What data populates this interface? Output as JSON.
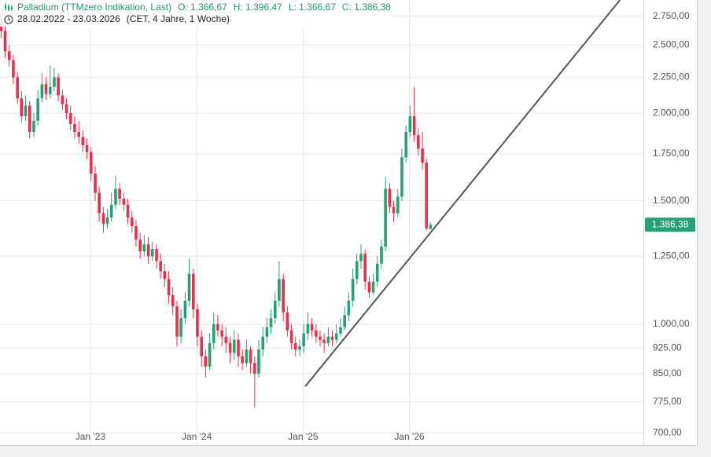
{
  "chart_data": {
    "type": "candlestick",
    "title": "Palladium (TTMzero Indikation, Last)",
    "ohlc_labels": [
      "O: 1.366,67",
      "H: 1.396,47",
      "L: 1.366,67",
      "C: 1.386,38"
    ],
    "subtitle": "28.02.2022 - 23.03.2026",
    "note": "(CET, 4 Jahre, 1 Woche)",
    "log_scale": true,
    "grid": true,
    "up_color": "#27a174",
    "down_color": "#e8304e",
    "xlim": [
      2022.15,
      2028.2
    ],
    "xticks": [
      {
        "value": 2023,
        "label": "Jan '23"
      },
      {
        "value": 2024,
        "label": "Jan '24"
      },
      {
        "value": 2025,
        "label": "Jan '25"
      },
      {
        "value": 2026,
        "label": "Jan '26"
      }
    ],
    "ylim": [
      672,
      2900
    ],
    "yticks": [
      {
        "value": 700,
        "label": "700,00"
      },
      {
        "value": 775,
        "label": "775,00"
      },
      {
        "value": 850,
        "label": "850,00"
      },
      {
        "value": 925,
        "label": "925,00"
      },
      {
        "value": 1000,
        "label": "1.000,00"
      },
      {
        "value": 1250,
        "label": "1.250,00"
      },
      {
        "value": 1500,
        "label": "1.500,00"
      },
      {
        "value": 1750,
        "label": "1.750,00"
      },
      {
        "value": 2000,
        "label": "2.000,00"
      },
      {
        "value": 2250,
        "label": "2.250,00"
      },
      {
        "value": 2500,
        "label": "2.500,00"
      },
      {
        "value": 2750,
        "label": "2.750,00"
      }
    ],
    "last_price": {
      "value": 1386.38,
      "label": "1.386,38"
    },
    "trendline": {
      "x": [
        2025.02,
        2027.98
      ],
      "y": [
        815,
        2900
      ],
      "color": "#555555"
    },
    "x": [
      2022.16,
      2022.198,
      2022.237,
      2022.275,
      2022.314,
      2022.352,
      2022.391,
      2022.429,
      2022.468,
      2022.506,
      2022.545,
      2022.583,
      2022.622,
      2022.66,
      2022.698,
      2022.737,
      2022.775,
      2022.814,
      2022.852,
      2022.891,
      2022.929,
      2022.968,
      2023.006,
      2023.045,
      2023.083,
      2023.122,
      2023.16,
      2023.198,
      2023.237,
      2023.275,
      2023.314,
      2023.352,
      2023.391,
      2023.429,
      2023.468,
      2023.506,
      2023.545,
      2023.583,
      2023.622,
      2023.66,
      2023.698,
      2023.737,
      2023.775,
      2023.814,
      2023.852,
      2023.891,
      2023.929,
      2023.968,
      2024.006,
      2024.045,
      2024.083,
      2024.122,
      2024.16,
      2024.198,
      2024.237,
      2024.275,
      2024.314,
      2024.352,
      2024.391,
      2024.429,
      2024.468,
      2024.506,
      2024.545,
      2024.583,
      2024.622,
      2024.66,
      2024.698,
      2024.737,
      2024.775,
      2024.814,
      2024.852,
      2024.891,
      2024.929,
      2024.968,
      2025.006,
      2025.045,
      2025.083,
      2025.122,
      2025.16,
      2025.198,
      2025.237,
      2025.275,
      2025.314,
      2025.352,
      2025.391,
      2025.429,
      2025.468,
      2025.506,
      2025.545,
      2025.583,
      2025.622,
      2025.66,
      2025.698,
      2025.737,
      2025.775,
      2025.814,
      2025.852,
      2025.891,
      2025.929,
      2025.968,
      2026.006,
      2026.045,
      2026.083,
      2026.122,
      2026.16,
      2026.198
    ],
    "ohlc": [
      [
        2700,
        2760,
        2560,
        2620
      ],
      [
        2620,
        2660,
        2400,
        2450
      ],
      [
        2450,
        2500,
        2330,
        2380
      ],
      [
        2380,
        2420,
        2200,
        2250
      ],
      [
        2250,
        2290,
        2060,
        2100
      ],
      [
        2100,
        2150,
        1940,
        1980
      ],
      [
        1980,
        2120,
        1950,
        2050
      ],
      [
        2050,
        2080,
        1840,
        1880
      ],
      [
        1880,
        2000,
        1850,
        1950
      ],
      [
        1950,
        2160,
        1920,
        2100
      ],
      [
        2100,
        2280,
        2070,
        2200
      ],
      [
        2200,
        2250,
        2090,
        2130
      ],
      [
        2130,
        2340,
        2100,
        2180
      ],
      [
        2180,
        2320,
        2150,
        2250
      ],
      [
        2250,
        2280,
        2080,
        2120
      ],
      [
        2120,
        2160,
        2020,
        2060
      ],
      [
        2060,
        2100,
        1960,
        2000
      ],
      [
        2000,
        2050,
        1890,
        1930
      ],
      [
        1930,
        1980,
        1840,
        1880
      ],
      [
        1880,
        1950,
        1810,
        1850
      ],
      [
        1850,
        1890,
        1760,
        1800
      ],
      [
        1800,
        1840,
        1720,
        1760
      ],
      [
        1760,
        1790,
        1600,
        1640
      ],
      [
        1640,
        1680,
        1500,
        1540
      ],
      [
        1540,
        1570,
        1400,
        1440
      ],
      [
        1440,
        1470,
        1350,
        1390
      ],
      [
        1390,
        1460,
        1370,
        1420
      ],
      [
        1420,
        1540,
        1400,
        1480
      ],
      [
        1480,
        1630,
        1460,
        1560
      ],
      [
        1560,
        1590,
        1480,
        1510
      ],
      [
        1510,
        1540,
        1450,
        1480
      ],
      [
        1480,
        1510,
        1390,
        1420
      ],
      [
        1420,
        1450,
        1350,
        1380
      ],
      [
        1380,
        1410,
        1290,
        1320
      ],
      [
        1320,
        1350,
        1240,
        1270
      ],
      [
        1270,
        1340,
        1250,
        1300
      ],
      [
        1300,
        1330,
        1220,
        1250
      ],
      [
        1250,
        1310,
        1230,
        1280
      ],
      [
        1280,
        1300,
        1200,
        1230
      ],
      [
        1230,
        1260,
        1160,
        1190
      ],
      [
        1190,
        1220,
        1130,
        1160
      ],
      [
        1160,
        1190,
        1070,
        1100
      ],
      [
        1100,
        1130,
        1030,
        1060
      ],
      [
        1060,
        1080,
        930,
        960
      ],
      [
        960,
        1050,
        940,
        1020
      ],
      [
        1020,
        1110,
        1000,
        1080
      ],
      [
        1080,
        1240,
        1060,
        1180
      ],
      [
        1180,
        1200,
        1020,
        1050
      ],
      [
        1050,
        1070,
        930,
        960
      ],
      [
        960,
        980,
        870,
        900
      ],
      [
        900,
        920,
        840,
        870
      ],
      [
        870,
        970,
        860,
        940
      ],
      [
        940,
        1040,
        920,
        1000
      ],
      [
        1000,
        1030,
        960,
        980
      ],
      [
        980,
        1000,
        930,
        960
      ],
      [
        960,
        990,
        910,
        940
      ],
      [
        940,
        960,
        880,
        910
      ],
      [
        910,
        980,
        890,
        950
      ],
      [
        950,
        970,
        870,
        900
      ],
      [
        900,
        920,
        860,
        880
      ],
      [
        880,
        950,
        870,
        920
      ],
      [
        920,
        930,
        850,
        880
      ],
      [
        880,
        900,
        760,
        850
      ],
      [
        850,
        950,
        840,
        920
      ],
      [
        920,
        990,
        900,
        960
      ],
      [
        960,
        1020,
        940,
        990
      ],
      [
        990,
        1050,
        970,
        1020
      ],
      [
        1020,
        1110,
        1000,
        1080
      ],
      [
        1080,
        1230,
        1060,
        1160
      ],
      [
        1160,
        1180,
        1010,
        1040
      ],
      [
        1040,
        1060,
        960,
        980
      ],
      [
        980,
        1000,
        920,
        940
      ],
      [
        940,
        960,
        900,
        920
      ],
      [
        920,
        950,
        900,
        930
      ],
      [
        930,
        1000,
        910,
        970
      ],
      [
        970,
        1040,
        950,
        1000
      ],
      [
        1000,
        1020,
        960,
        980
      ],
      [
        980,
        1000,
        940,
        960
      ],
      [
        960,
        980,
        930,
        950
      ],
      [
        950,
        970,
        910,
        940
      ],
      [
        940,
        990,
        930,
        960
      ],
      [
        960,
        980,
        930,
        950
      ],
      [
        950,
        1000,
        940,
        970
      ],
      [
        970,
        1020,
        960,
        990
      ],
      [
        990,
        1060,
        980,
        1030
      ],
      [
        1030,
        1110,
        1010,
        1080
      ],
      [
        1080,
        1200,
        1060,
        1160
      ],
      [
        1160,
        1260,
        1140,
        1230
      ],
      [
        1230,
        1300,
        1200,
        1260
      ],
      [
        1260,
        1280,
        1120,
        1150
      ],
      [
        1150,
        1170,
        1090,
        1110
      ],
      [
        1110,
        1180,
        1100,
        1150
      ],
      [
        1150,
        1250,
        1130,
        1220
      ],
      [
        1220,
        1320,
        1200,
        1290
      ],
      [
        1290,
        1620,
        1270,
        1560
      ],
      [
        1560,
        1590,
        1440,
        1470
      ],
      [
        1470,
        1500,
        1400,
        1440
      ],
      [
        1440,
        1560,
        1420,
        1520
      ],
      [
        1520,
        1780,
        1500,
        1730
      ],
      [
        1730,
        1920,
        1700,
        1880
      ],
      [
        1880,
        2050,
        1850,
        1980
      ],
      [
        1980,
        2180,
        1820,
        1860
      ],
      [
        1860,
        1900,
        1740,
        1780
      ],
      [
        1780,
        1880,
        1660,
        1700
      ],
      [
        1700,
        1720,
        1360,
        1370
      ],
      [
        1366.67,
        1396.47,
        1366.67,
        1386.38
      ]
    ]
  }
}
